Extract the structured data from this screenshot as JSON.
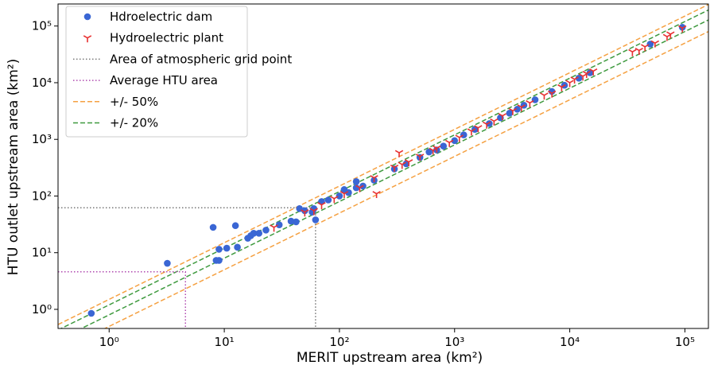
{
  "chart_data": {
    "type": "scatter",
    "x_label": "MERIT upstream area (km²)",
    "y_label": "HTU outlet upstream area (km²)",
    "log_x": true,
    "log_y": true,
    "xlim": [
      0.36,
      160000
    ],
    "ylim": [
      0.46,
      245000
    ],
    "xticks": [
      {
        "value": 1,
        "label": "10⁰"
      },
      {
        "value": 10,
        "label": "10¹"
      },
      {
        "value": 100,
        "label": "10²"
      },
      {
        "value": 1000,
        "label": "10³"
      },
      {
        "value": 10000,
        "label": "10⁴"
      },
      {
        "value": 100000,
        "label": "10⁵"
      }
    ],
    "yticks": [
      {
        "value": 1,
        "label": "10⁰"
      },
      {
        "value": 10,
        "label": "10¹"
      },
      {
        "value": 100,
        "label": "10²"
      },
      {
        "value": 1000,
        "label": "10³"
      },
      {
        "value": 10000,
        "label": "10⁴"
      },
      {
        "value": 100000,
        "label": "10⁵"
      }
    ],
    "legend": "upper left",
    "series": [
      {
        "name": "Hdroelectric dam",
        "color": "#3a66d4",
        "marker": "circle",
        "x": [
          0.7,
          3.2,
          8,
          8.5,
          9,
          9,
          10.5,
          12.5,
          13,
          16,
          17,
          18,
          20,
          23,
          30,
          38,
          42,
          45,
          50,
          58,
          60,
          62,
          70,
          80,
          100,
          110,
          120,
          140,
          140,
          160,
          200,
          300,
          380,
          500,
          600,
          700,
          800,
          1000,
          1200,
          1500,
          2000,
          2500,
          3000,
          3500,
          4000,
          5000,
          7000,
          9000,
          12000,
          15000,
          50000,
          95000
        ],
        "values": [
          0.85,
          6.5,
          28,
          7.3,
          7.3,
          11.5,
          12,
          30,
          12.5,
          18,
          20,
          22,
          22,
          25,
          31,
          36,
          35,
          60,
          55,
          52,
          60,
          38,
          80,
          85,
          100,
          130,
          115,
          140,
          180,
          150,
          190,
          300,
          370,
          480,
          600,
          650,
          760,
          950,
          1200,
          1500,
          1900,
          2400,
          2900,
          3400,
          4000,
          5000,
          7000,
          9000,
          12000,
          15000,
          48000,
          95000
        ]
      },
      {
        "name": "Hydroelectric plant",
        "color": "#e83030",
        "marker": "tri_down",
        "x": [
          27,
          50,
          60,
          70,
          90,
          110,
          150,
          200,
          210,
          300,
          330,
          350,
          400,
          500,
          650,
          700,
          900,
          1100,
          1400,
          1600,
          1900,
          2200,
          2600,
          3200,
          3800,
          4500,
          6000,
          7000,
          8500,
          10000,
          11000,
          13000,
          14000,
          16000,
          35000,
          40000,
          45000,
          55000,
          70000,
          75000,
          95000
        ],
        "values": [
          28,
          52,
          55,
          70,
          90,
          110,
          140,
          210,
          110,
          320,
          580,
          360,
          400,
          500,
          640,
          700,
          880,
          1080,
          1400,
          1600,
          1850,
          2100,
          2600,
          3200,
          3700,
          4400,
          6000,
          6500,
          8400,
          10000,
          11500,
          13000,
          14500,
          16000,
          35000,
          37000,
          43000,
          50000,
          65000,
          72000,
          92000
        ]
      }
    ],
    "reference_lines": [
      {
        "name": "Area of atmospheric grid point",
        "color": "#777777",
        "value": 62
      },
      {
        "name": "Average HTU area",
        "color": "#b04ab0",
        "value": 4.6
      }
    ],
    "band_lines": [
      {
        "name": "+/- 50%",
        "color": "#f5a142",
        "x": [
          0.36,
          160000
        ],
        "upper": [
          0.54,
          240000
        ],
        "lower": [
          0.18,
          80000
        ]
      },
      {
        "name": "+/- 20%",
        "color": "#3f9a3f",
        "x": [
          0.36,
          160000
        ],
        "upper": [
          0.432,
          192000
        ],
        "lower": [
          0.288,
          128000
        ]
      }
    ]
  }
}
